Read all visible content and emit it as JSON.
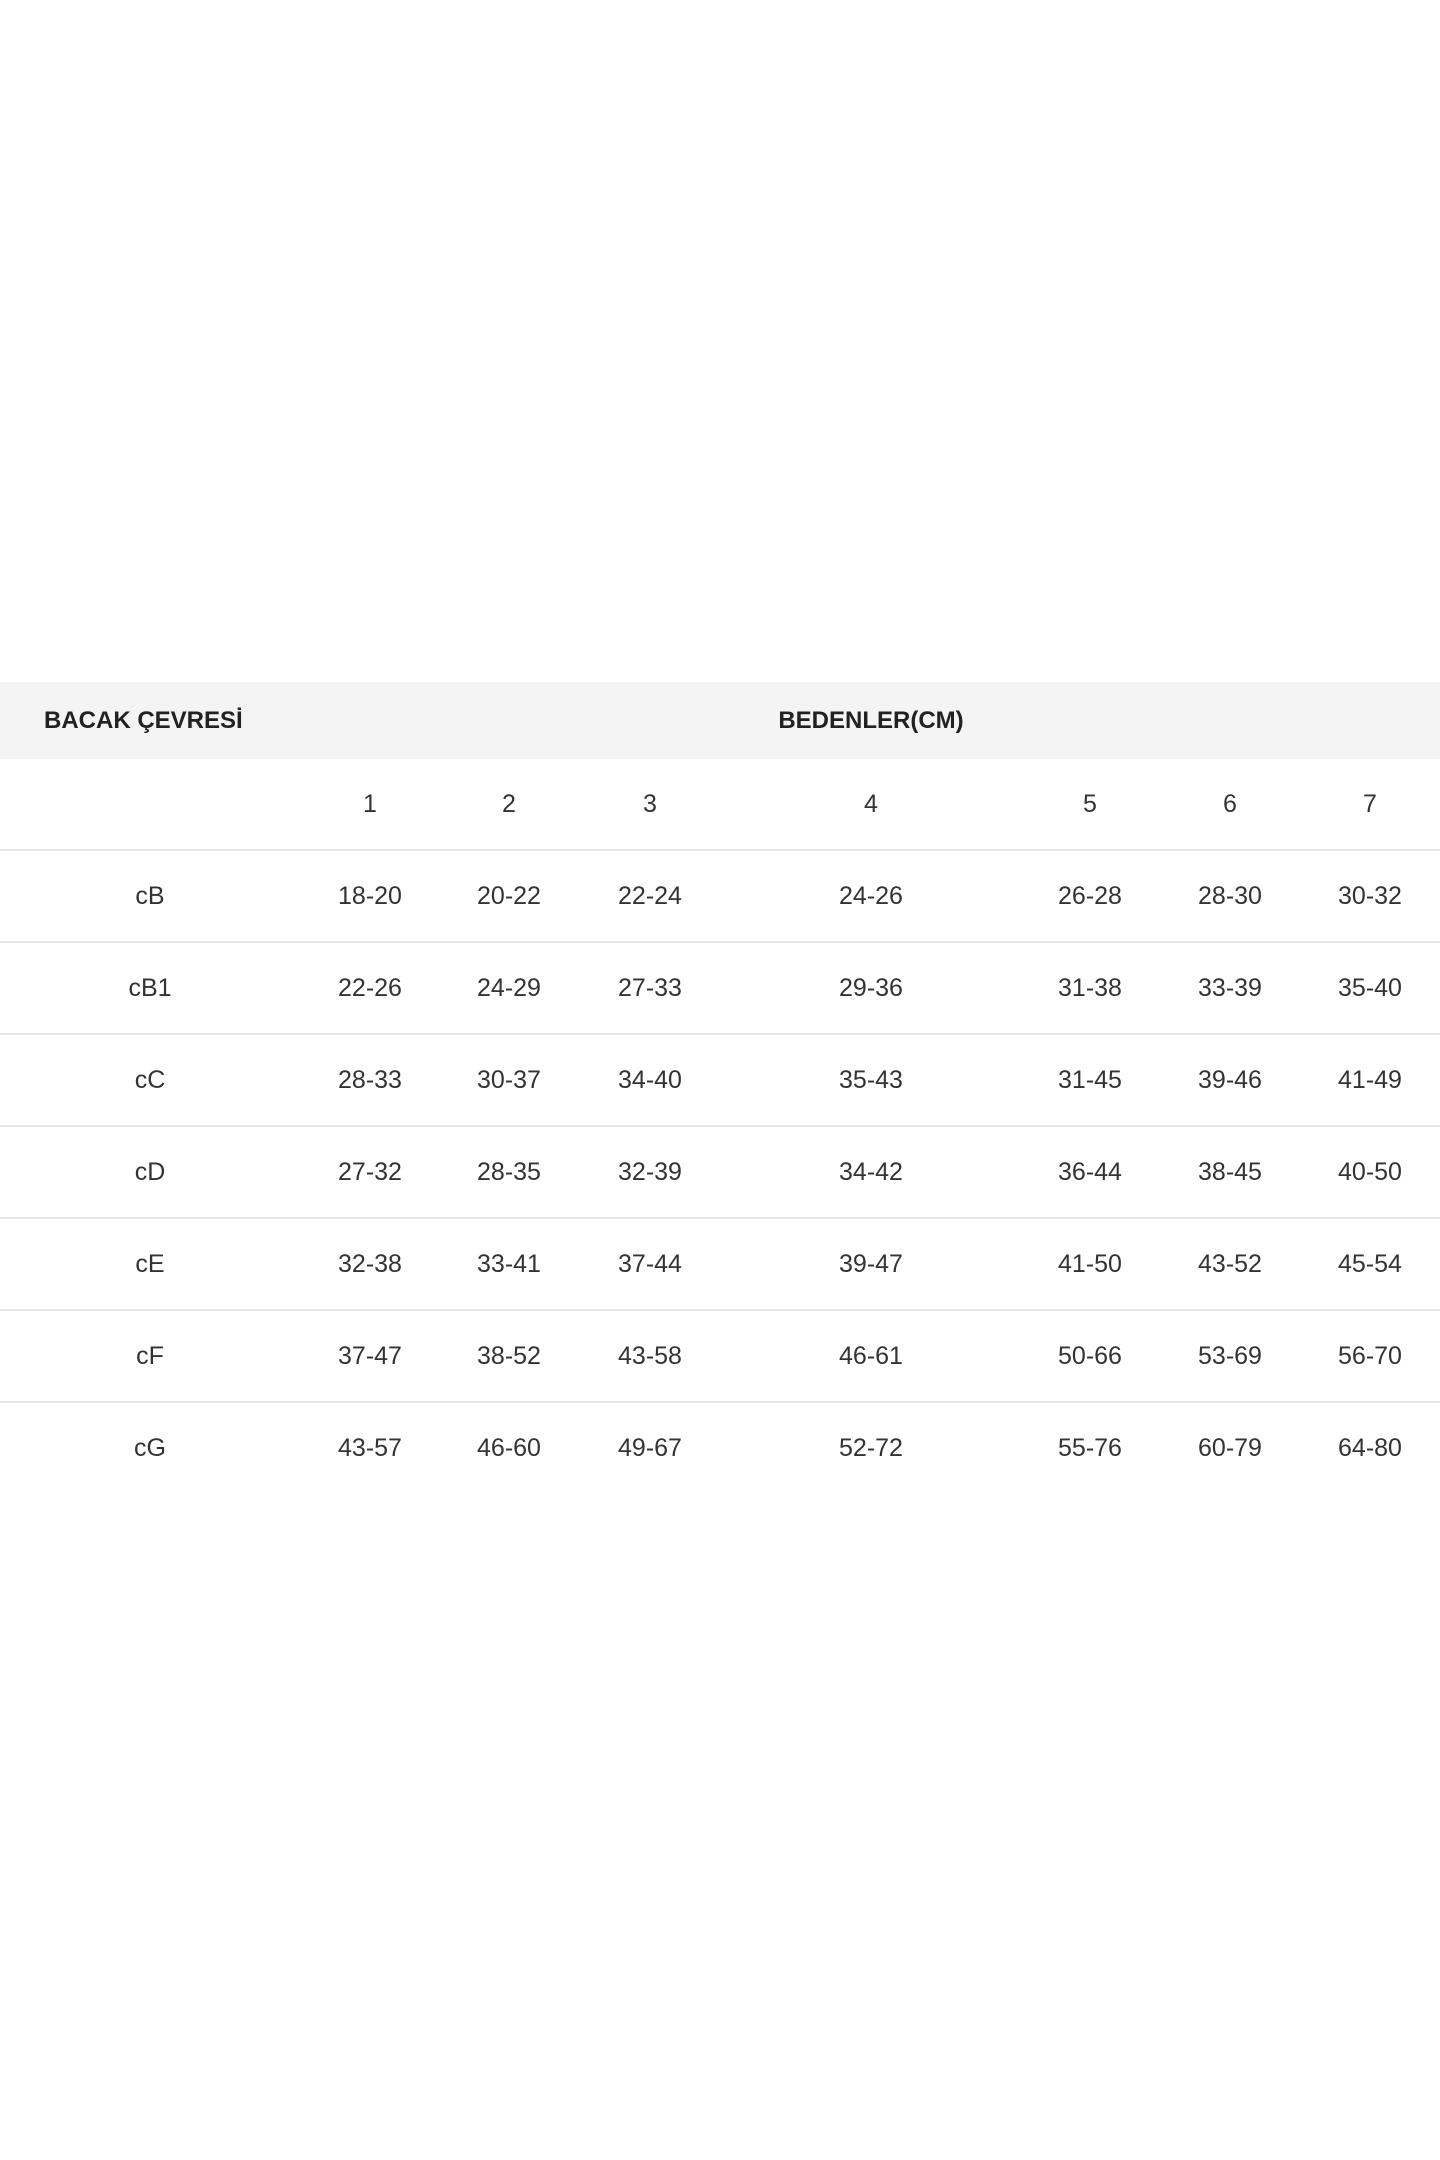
{
  "table": {
    "title_left": "BACAK ÇEVRESİ",
    "title_right": "BEDENLER(CM)",
    "sizes": [
      "",
      "1",
      "2",
      "3",
      "4",
      "5",
      "6",
      "7"
    ],
    "rows": [
      [
        "cB",
        "18-20",
        "20-22",
        "22-24",
        "24-26",
        "26-28",
        "28-30",
        "30-32"
      ],
      [
        "cB1",
        "22-26",
        "24-29",
        "27-33",
        "29-36",
        "31-38",
        "33-39",
        "35-40"
      ],
      [
        "cC",
        "28-33",
        "30-37",
        "34-40",
        "35-43",
        "31-45",
        "39-46",
        "41-49"
      ],
      [
        "cD",
        "27-32",
        "28-35",
        "32-39",
        "34-42",
        "36-44",
        "38-45",
        "40-50"
      ],
      [
        "cE",
        "32-38",
        "33-41",
        "37-44",
        "39-47",
        "41-50",
        "43-52",
        "45-54"
      ],
      [
        "cF",
        "37-47",
        "38-52",
        "43-58",
        "46-61",
        "50-66",
        "53-69",
        "56-70"
      ],
      [
        "cG",
        "43-57",
        "46-60",
        "49-67",
        "52-72",
        "55-76",
        "60-79",
        "64-80"
      ]
    ]
  }
}
